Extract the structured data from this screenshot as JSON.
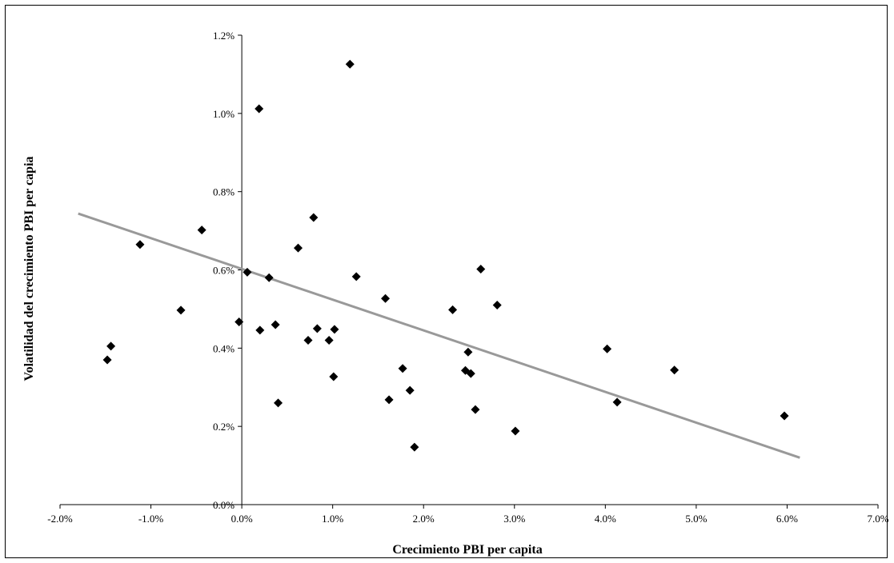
{
  "chart_data": {
    "type": "scatter",
    "title": "",
    "xlabel": "Crecimiento PBI per capita",
    "ylabel": "Volatilidad del crecimiento PBI per capia",
    "xlim": [
      -0.02,
      0.07
    ],
    "ylim": [
      0.0,
      0.012
    ],
    "x_ticks": [
      -0.02,
      -0.01,
      0.0,
      0.01,
      0.02,
      0.03,
      0.04,
      0.05,
      0.06,
      0.07
    ],
    "x_tick_labels": [
      "-2.0%",
      "-1.0%",
      "0.0%",
      "1.0%",
      "2.0%",
      "3.0%",
      "4.0%",
      "5.0%",
      "6.0%",
      "7.0%"
    ],
    "y_ticks": [
      0.0,
      0.002,
      0.004,
      0.006,
      0.008,
      0.01,
      0.012
    ],
    "y_tick_labels": [
      "0.0%",
      "0.2%",
      "0.4%",
      "0.6%",
      "0.8%",
      "1.0%",
      "1.2%"
    ],
    "grid": false,
    "legend": "none",
    "marker": "diamond",
    "marker_color": "#000000",
    "trendline_color": "#999999",
    "points": [
      {
        "x": -0.0148,
        "y": 0.0037
      },
      {
        "x": -0.0144,
        "y": 0.00405
      },
      {
        "x": -0.0112,
        "y": 0.00665
      },
      {
        "x": -0.0067,
        "y": 0.00497
      },
      {
        "x": -0.0044,
        "y": 0.00702
      },
      {
        "x": -0.0003,
        "y": 0.00467
      },
      {
        "x": 0.0006,
        "y": 0.00594
      },
      {
        "x": 0.0019,
        "y": 0.01012
      },
      {
        "x": 0.002,
        "y": 0.00446
      },
      {
        "x": 0.003,
        "y": 0.0058
      },
      {
        "x": 0.0037,
        "y": 0.0046
      },
      {
        "x": 0.004,
        "y": 0.0026
      },
      {
        "x": 0.0062,
        "y": 0.00656
      },
      {
        "x": 0.0073,
        "y": 0.0042
      },
      {
        "x": 0.0079,
        "y": 0.00734
      },
      {
        "x": 0.0083,
        "y": 0.0045
      },
      {
        "x": 0.0096,
        "y": 0.0042
      },
      {
        "x": 0.0101,
        "y": 0.00327
      },
      {
        "x": 0.0102,
        "y": 0.00448
      },
      {
        "x": 0.0119,
        "y": 0.01126
      },
      {
        "x": 0.0126,
        "y": 0.00583
      },
      {
        "x": 0.0158,
        "y": 0.00527
      },
      {
        "x": 0.0162,
        "y": 0.00268
      },
      {
        "x": 0.0177,
        "y": 0.00348
      },
      {
        "x": 0.0185,
        "y": 0.00292
      },
      {
        "x": 0.019,
        "y": 0.00147
      },
      {
        "x": 0.0232,
        "y": 0.00498
      },
      {
        "x": 0.0246,
        "y": 0.00343
      },
      {
        "x": 0.0249,
        "y": 0.0039
      },
      {
        "x": 0.0252,
        "y": 0.00335
      },
      {
        "x": 0.0257,
        "y": 0.00243
      },
      {
        "x": 0.0263,
        "y": 0.00602
      },
      {
        "x": 0.0281,
        "y": 0.0051
      },
      {
        "x": 0.0301,
        "y": 0.00188
      },
      {
        "x": 0.0402,
        "y": 0.00398
      },
      {
        "x": 0.0413,
        "y": 0.00262
      },
      {
        "x": 0.0476,
        "y": 0.00344
      },
      {
        "x": 0.0597,
        "y": 0.00227
      }
    ],
    "trendline": {
      "x": [
        -0.018,
        0.0614
      ],
      "y": [
        0.00744,
        0.0012
      ]
    }
  }
}
